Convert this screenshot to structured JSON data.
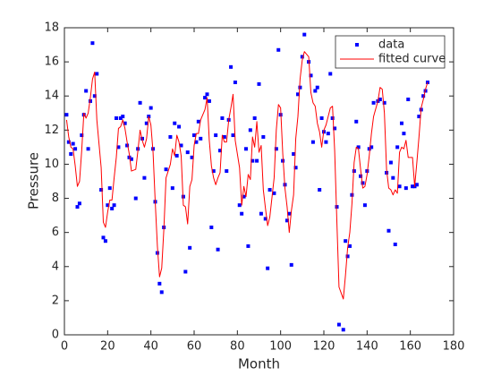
{
  "chart_data": {
    "type": "scatter",
    "xlabel": "Month",
    "ylabel": "Pressure",
    "xlim": [
      0,
      180
    ],
    "xticks": [
      0,
      20,
      40,
      60,
      80,
      100,
      120,
      140,
      160,
      180
    ],
    "ylim": [
      0,
      18
    ],
    "yticks": [
      0,
      2,
      4,
      6,
      8,
      10,
      12,
      14,
      16,
      18
    ],
    "legend": "top-right",
    "x": [
      1,
      2,
      3,
      4,
      5,
      6,
      7,
      8,
      9,
      10,
      11,
      12,
      13,
      14,
      15,
      17,
      18,
      19,
      20,
      21,
      22,
      23,
      24,
      25,
      26,
      27,
      28,
      29,
      30,
      31,
      33,
      34,
      35,
      36,
      37,
      38,
      39,
      40,
      41,
      42,
      43,
      44,
      45,
      46,
      47,
      49,
      50,
      51,
      52,
      53,
      54,
      55,
      56,
      57,
      58,
      59,
      60,
      61,
      62,
      63,
      65,
      66,
      67,
      68,
      69,
      70,
      71,
      72,
      73,
      74,
      75,
      76,
      77,
      78,
      79,
      81,
      82,
      83,
      84,
      85,
      86,
      87,
      88,
      89,
      90,
      91,
      92,
      93,
      94,
      95,
      97,
      98,
      99,
      100,
      101,
      102,
      103,
      104,
      105,
      106,
      107,
      108,
      109,
      110,
      111,
      113,
      114,
      115,
      116,
      117,
      118,
      119,
      120,
      121,
      122,
      123,
      124,
      125,
      126,
      127,
      129,
      130,
      131,
      132,
      133,
      134,
      135,
      136,
      137,
      138,
      139,
      140,
      141,
      142,
      143,
      145,
      146,
      147,
      148,
      149,
      150,
      151,
      152,
      153,
      154,
      155,
      156,
      157,
      158,
      159,
      161,
      162,
      163,
      164,
      165,
      166,
      167,
      168
    ],
    "series": [
      {
        "name": "data",
        "mode": "markers",
        "color": "#0000ff",
        "values": [
          12.9,
          11.3,
          10.6,
          11.2,
          10.9,
          7.5,
          7.7,
          11.7,
          12.9,
          14.3,
          10.9,
          13.7,
          17.1,
          14.0,
          15.3,
          8.5,
          5.7,
          5.5,
          7.6,
          8.6,
          7.4,
          7.6,
          12.7,
          11.0,
          12.7,
          12.8,
          12.4,
          11.1,
          10.4,
          10.3,
          8.0,
          10.9,
          13.6,
          11.5,
          9.2,
          12.4,
          12.8,
          13.3,
          10.9,
          7.8,
          4.8,
          3.0,
          2.5,
          6.3,
          9.7,
          11.6,
          8.6,
          12.4,
          10.5,
          12.2,
          11.1,
          8.1,
          3.7,
          10.7,
          5.1,
          10.4,
          11.7,
          11.3,
          12.5,
          11.5,
          13.9,
          14.1,
          13.7,
          6.3,
          9.6,
          11.7,
          5.0,
          10.8,
          12.7,
          11.6,
          9.6,
          12.6,
          15.7,
          11.7,
          14.8,
          7.6,
          7.1,
          8.1,
          10.9,
          5.2,
          12.0,
          10.2,
          12.7,
          10.2,
          14.7,
          7.1,
          11.6,
          6.8,
          3.9,
          8.5,
          8.3,
          10.9,
          16.7,
          12.9,
          10.2,
          8.8,
          6.7,
          7.1,
          4.1,
          10.6,
          9.8,
          14.1,
          14.5,
          16.3,
          17.6,
          16.0,
          15.2,
          11.3,
          14.3,
          14.5,
          8.5,
          12.7,
          11.9,
          11.3,
          11.8,
          15.3,
          12.7,
          12.1,
          7.5,
          0.6,
          0.3,
          5.5,
          4.6,
          5.2,
          8.2,
          9.6,
          12.5,
          11.0,
          9.3,
          8.9,
          7.6,
          9.6,
          10.9,
          11.0,
          13.6,
          13.7,
          13.8,
          15.9,
          13.6,
          9.5,
          6.1,
          10.1,
          9.2,
          5.3,
          11.0,
          8.7,
          12.4,
          11.8,
          8.6,
          13.8,
          8.7,
          8.7,
          8.8,
          12.8,
          13.2,
          14.0,
          14.3,
          14.8
        ]
      },
      {
        "name": "fitted curve",
        "mode": "line",
        "color": "#ff0000",
        "values": [
          12.6,
          11.6,
          11.0,
          10.9,
          9.9,
          8.7,
          9.0,
          10.8,
          13.0,
          12.7,
          13.0,
          13.9,
          15.0,
          15.4,
          12.6,
          9.8,
          6.6,
          6.3,
          7.2,
          7.9,
          7.9,
          9.2,
          10.4,
          12.1,
          12.2,
          12.6,
          12.1,
          11.3,
          10.6,
          9.6,
          9.7,
          10.8,
          12.0,
          11.4,
          11.0,
          11.5,
          12.8,
          12.3,
          10.7,
          7.8,
          5.2,
          3.4,
          3.9,
          6.2,
          9.2,
          10.0,
          10.9,
          10.5,
          11.7,
          11.3,
          10.5,
          7.6,
          7.5,
          6.5,
          8.7,
          9.1,
          11.1,
          11.8,
          11.8,
          12.6,
          13.2,
          13.9,
          11.4,
          9.9,
          9.2,
          8.8,
          9.2,
          9.5,
          11.7,
          11.3,
          11.3,
          12.6,
          13.3,
          14.1,
          11.4,
          9.8,
          7.6,
          8.7,
          8.1,
          9.4,
          9.1,
          11.6,
          11.0,
          12.5,
          10.7,
          11.1,
          8.5,
          7.4,
          6.4,
          6.9,
          9.2,
          12.0,
          13.5,
          13.3,
          10.6,
          8.6,
          7.5,
          6.0,
          7.3,
          8.2,
          11.5,
          12.8,
          15.0,
          16.1,
          16.6,
          16.3,
          14.2,
          13.6,
          13.4,
          12.4,
          11.9,
          11.0,
          12.0,
          12.3,
          12.8,
          13.3,
          13.4,
          10.8,
          6.7,
          2.8,
          2.1,
          3.5,
          5.1,
          6.0,
          7.7,
          10.1,
          11.0,
          10.9,
          9.7,
          8.6,
          8.7,
          9.4,
          10.5,
          11.8,
          12.8,
          13.7,
          14.5,
          14.4,
          13.0,
          9.7,
          8.6,
          8.5,
          8.2,
          8.5,
          8.3,
          10.7,
          11.0,
          10.9,
          11.4,
          10.4,
          10.4,
          8.7,
          10.1,
          11.6,
          13.3,
          13.8,
          14.4,
          14.8
        ]
      }
    ]
  }
}
